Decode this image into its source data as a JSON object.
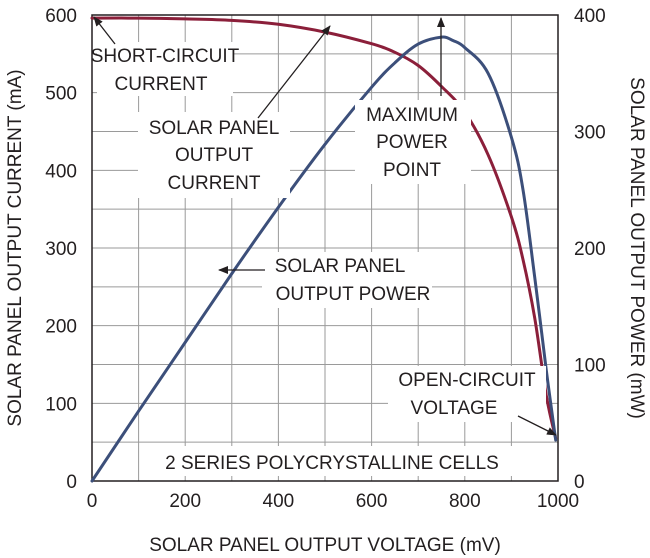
{
  "chart_data": {
    "type": "line",
    "xlabel": "SOLAR PANEL OUTPUT VOLTAGE (mV)",
    "ylabel_left": "SOLAR PANEL OUTPUT CURRENT (mA)",
    "ylabel_right": "SOLAR PANEL OUTPUT POWER (mW)",
    "xlim": [
      0,
      1000
    ],
    "ylim_left": [
      0,
      600
    ],
    "ylim_right": [
      0,
      400
    ],
    "x_ticks": [
      "0",
      "200",
      "400",
      "600",
      "800",
      "1000"
    ],
    "y_left_ticks": [
      "0",
      "100",
      "200",
      "300",
      "400",
      "500",
      "600"
    ],
    "y_right_ticks": [
      "0",
      "100",
      "200",
      "300",
      "400"
    ],
    "grid": true,
    "series": [
      {
        "axis": "left",
        "color": "#8b1f3a",
        "points": [
          [
            0,
            596
          ],
          [
            100,
            596
          ],
          [
            200,
            595
          ],
          [
            300,
            593
          ],
          [
            400,
            588
          ],
          [
            500,
            578
          ],
          [
            600,
            563
          ],
          [
            650,
            552
          ],
          [
            700,
            535
          ],
          [
            750,
            508
          ],
          [
            800,
            475
          ],
          [
            850,
            420
          ],
          [
            900,
            340
          ],
          [
            925,
            285
          ],
          [
            950,
            210
          ],
          [
            975,
            110
          ],
          [
            995,
            55
          ]
        ]
      },
      {
        "axis": "right",
        "color": "#3c4f7a",
        "points": [
          [
            0,
            0
          ],
          [
            100,
            60
          ],
          [
            200,
            119
          ],
          [
            300,
            178
          ],
          [
            400,
            235
          ],
          [
            500,
            289
          ],
          [
            600,
            338
          ],
          [
            650,
            359
          ],
          [
            700,
            375
          ],
          [
            750,
            381
          ],
          [
            775,
            378
          ],
          [
            800,
            372
          ],
          [
            850,
            350
          ],
          [
            900,
            295
          ],
          [
            925,
            250
          ],
          [
            950,
            175
          ],
          [
            975,
            95
          ],
          [
            995,
            35
          ]
        ]
      }
    ],
    "annotations": {
      "short_circuit": [
        "SHORT-CIRCUIT",
        "CURRENT"
      ],
      "output_current": [
        "SOLAR PANEL",
        "OUTPUT",
        "CURRENT"
      ],
      "max_power": [
        "MAXIMUM",
        "POWER",
        "POINT"
      ],
      "output_power": [
        "SOLAR PANEL",
        "OUTPUT POWER"
      ],
      "open_circuit": [
        "OPEN-CIRCUIT",
        "VOLTAGE"
      ],
      "note": "2 SERIES POLYCRYSTALLINE CELLS"
    }
  }
}
